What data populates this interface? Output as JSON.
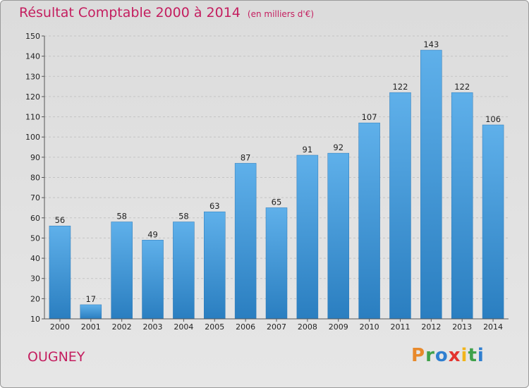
{
  "chart_data": {
    "type": "bar",
    "title": "Résultat Comptable 2000 à 2014",
    "subtitle": "(en milliers d'€)",
    "categories": [
      "2000",
      "2001",
      "2002",
      "2003",
      "2004",
      "2005",
      "2006",
      "2007",
      "2008",
      "2009",
      "2010",
      "2011",
      "2012",
      "2013",
      "2014"
    ],
    "values": [
      56,
      17,
      58,
      49,
      58,
      63,
      87,
      65,
      91,
      92,
      107,
      122,
      143,
      122,
      106
    ],
    "ylim": [
      10,
      150
    ],
    "yticks": [
      10,
      20,
      30,
      40,
      50,
      60,
      70,
      80,
      90,
      100,
      110,
      120,
      130,
      140,
      150
    ],
    "grid": true,
    "bar_color_top": "#5fb0ea",
    "bar_color_bottom": "#2a7ec0"
  },
  "footer": {
    "town": "OUGNEY",
    "logo_letters": [
      "P",
      "r",
      "o",
      "x",
      "i",
      "t",
      "i"
    ],
    "logo_colors": [
      "#e8892b",
      "#3fa14a",
      "#2f7fd0",
      "#e3342f",
      "#f2b51b",
      "#3fa14a",
      "#2f7fd0"
    ]
  }
}
